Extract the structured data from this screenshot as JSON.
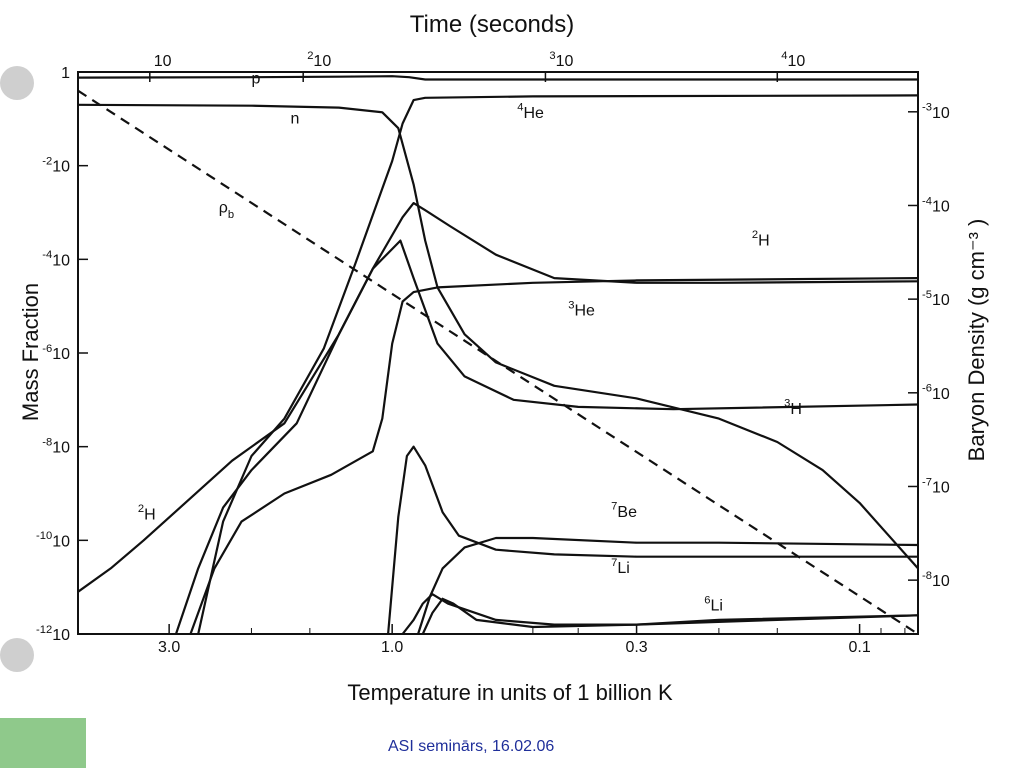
{
  "footer": "ASI seminārs, 16.02.06",
  "chart_data": {
    "type": "line",
    "title": "Time (seconds)",
    "xlabel": "Temperature  in units of 1 billion K",
    "ylabel": "Mass Fraction",
    "y2label": "Baryon Density (g cm⁻³ )",
    "x_scale": "log (decreasing)",
    "y_scale": "log",
    "xlim": [
      4.7,
      0.075
    ],
    "ylim": [
      1e-12,
      1
    ],
    "x_ticks": [
      {
        "value": 3.0,
        "label": "3.0"
      },
      {
        "value": 1.0,
        "label": "1.0"
      },
      {
        "value": 0.3,
        "label": "0.3"
      },
      {
        "value": 0.1,
        "label": "0.1"
      }
    ],
    "y_ticks": [
      {
        "exp": 0,
        "base": "1",
        "sup": ""
      },
      {
        "exp": -2,
        "base": "10",
        "sup": "-2"
      },
      {
        "exp": -4,
        "base": "10",
        "sup": "-4"
      },
      {
        "exp": -6,
        "base": "10",
        "sup": "-6"
      },
      {
        "exp": -8,
        "base": "10",
        "sup": "-8"
      },
      {
        "exp": -10,
        "base": "10",
        "sup": "-10"
      },
      {
        "exp": -12,
        "base": "10",
        "sup": "-12"
      }
    ],
    "top_ticks": [
      {
        "base": "10",
        "sup": "",
        "T": 3.3
      },
      {
        "base": "10",
        "sup": "2",
        "T": 1.55
      },
      {
        "base": "10",
        "sup": "3",
        "T": 0.47
      },
      {
        "base": "10",
        "sup": "4",
        "T": 0.15
      }
    ],
    "right_ticks": [
      {
        "base": "10",
        "sup": "-3",
        "y": -0.85
      },
      {
        "base": "10",
        "sup": "-4",
        "y": -2.85
      },
      {
        "base": "10",
        "sup": "-5",
        "y": -4.85
      },
      {
        "base": "10",
        "sup": "-6",
        "y": -6.85
      },
      {
        "base": "10",
        "sup": "-7",
        "y": -8.85
      },
      {
        "base": "10",
        "sup": "-8",
        "y": -10.85
      }
    ],
    "series": [
      {
        "name": "p",
        "label": {
          "base": "p",
          "sup": "",
          "T": 2.0,
          "y": -0.25
        },
        "points": [
          [
            4.7,
            -0.12
          ],
          [
            2.0,
            -0.11
          ],
          [
            1.3,
            -0.1
          ],
          [
            1.0,
            -0.09
          ],
          [
            0.92,
            -0.11
          ],
          [
            0.85,
            -0.16
          ],
          [
            0.5,
            -0.16
          ],
          [
            0.075,
            -0.16
          ]
        ]
      },
      {
        "name": "n",
        "label": {
          "base": "n",
          "sup": "",
          "T": 1.65,
          "y": -1.1
        },
        "points": [
          [
            4.7,
            -0.7
          ],
          [
            2.0,
            -0.72
          ],
          [
            1.3,
            -0.76
          ],
          [
            1.05,
            -0.86
          ],
          [
            0.97,
            -1.2
          ],
          [
            0.9,
            -2.4
          ],
          [
            0.85,
            -3.6
          ],
          [
            0.8,
            -4.6
          ],
          [
            0.7,
            -5.6
          ],
          [
            0.6,
            -6.2
          ],
          [
            0.45,
            -6.7
          ],
          [
            0.3,
            -6.97
          ],
          [
            0.2,
            -7.4
          ],
          [
            0.15,
            -7.9
          ],
          [
            0.12,
            -8.5
          ],
          [
            0.1,
            -9.2
          ],
          [
            0.075,
            -10.6
          ]
        ]
      },
      {
        "name": "⁴He",
        "label": {
          "base": "He",
          "sup": "4",
          "T": 0.54,
          "y": -0.98
        },
        "points": [
          [
            2.6,
            -12
          ],
          [
            2.3,
            -9.6
          ],
          [
            2.0,
            -8.2
          ],
          [
            1.7,
            -7.4
          ],
          [
            1.4,
            -5.9
          ],
          [
            1.2,
            -4.1
          ],
          [
            1.0,
            -1.9
          ],
          [
            0.95,
            -1.1
          ],
          [
            0.9,
            -0.6
          ],
          [
            0.85,
            -0.55
          ],
          [
            0.5,
            -0.52
          ],
          [
            0.075,
            -0.5
          ]
        ]
      },
      {
        "name": "²H",
        "label": {
          "base": "H",
          "sup": "2",
          "T": 3.5,
          "y": -9.55
        },
        "points": [
          [
            4.7,
            -11.1
          ],
          [
            4.0,
            -10.6
          ],
          [
            3.4,
            -10.0
          ],
          [
            2.7,
            -9.1
          ],
          [
            2.2,
            -8.3
          ],
          [
            1.7,
            -7.5
          ],
          [
            1.3,
            -5.6
          ],
          [
            1.1,
            -4.2
          ],
          [
            0.95,
            -3.1
          ],
          [
            0.9,
            -2.8
          ],
          [
            0.85,
            -2.95
          ],
          [
            0.75,
            -3.3
          ],
          [
            0.6,
            -3.9
          ],
          [
            0.45,
            -4.4
          ],
          [
            0.3,
            -4.5
          ],
          [
            0.2,
            -4.5
          ],
          [
            0.075,
            -4.47
          ]
        ]
      },
      {
        "name": "²H (late)",
        "label": {
          "base": "H",
          "sup": "2",
          "T": 0.17,
          "y": -3.7
        },
        "points": []
      },
      {
        "name": "³H",
        "label": {
          "base": "H",
          "sup": "3",
          "T": 0.145,
          "y": -7.3
        },
        "points": [
          [
            2.9,
            -12
          ],
          [
            2.6,
            -10.6
          ],
          [
            2.3,
            -9.3
          ],
          [
            2.0,
            -8.5
          ],
          [
            1.6,
            -7.5
          ],
          [
            1.3,
            -5.6
          ],
          [
            1.1,
            -4.2
          ],
          [
            0.96,
            -3.6
          ],
          [
            0.9,
            -4.4
          ],
          [
            0.8,
            -5.8
          ],
          [
            0.7,
            -6.5
          ],
          [
            0.55,
            -7.0
          ],
          [
            0.4,
            -7.15
          ],
          [
            0.25,
            -7.2
          ],
          [
            0.075,
            -7.1
          ]
        ]
      },
      {
        "name": "³He",
        "label": {
          "base": "He",
          "sup": "3",
          "T": 0.42,
          "y": -5.2
        },
        "points": [
          [
            2.7,
            -12
          ],
          [
            2.4,
            -10.6
          ],
          [
            2.1,
            -9.6
          ],
          [
            1.7,
            -9.0
          ],
          [
            1.35,
            -8.6
          ],
          [
            1.1,
            -8.1
          ],
          [
            1.05,
            -7.4
          ],
          [
            1.0,
            -5.8
          ],
          [
            0.95,
            -4.9
          ],
          [
            0.9,
            -4.7
          ],
          [
            0.8,
            -4.6
          ],
          [
            0.5,
            -4.5
          ],
          [
            0.3,
            -4.45
          ],
          [
            0.075,
            -4.4
          ]
        ]
      },
      {
        "name": "⁷Be",
        "label": {
          "base": "Be",
          "sup": "7",
          "T": 0.34,
          "y": -9.5
        },
        "points": [
          [
            1.02,
            -12
          ],
          [
            0.97,
            -9.5
          ],
          [
            0.93,
            -8.2
          ],
          [
            0.9,
            -8.0
          ],
          [
            0.85,
            -8.4
          ],
          [
            0.78,
            -9.4
          ],
          [
            0.72,
            -9.9
          ],
          [
            0.6,
            -10.2
          ],
          [
            0.45,
            -10.3
          ],
          [
            0.3,
            -10.35
          ],
          [
            0.075,
            -10.35
          ]
        ]
      },
      {
        "name": "⁷Li",
        "label": {
          "base": "Li",
          "sup": "7",
          "T": 0.34,
          "y": -10.7
        },
        "points": [
          [
            0.88,
            -12
          ],
          [
            0.83,
            -11.2
          ],
          [
            0.78,
            -10.6
          ],
          [
            0.7,
            -10.15
          ],
          [
            0.6,
            -9.95
          ],
          [
            0.5,
            -9.95
          ],
          [
            0.3,
            -10.05
          ],
          [
            0.2,
            -10.05
          ],
          [
            0.075,
            -10.1
          ]
        ]
      },
      {
        "name": "⁷Li (low)",
        "label": {
          "base": "",
          "sup": "",
          "T": 0.5,
          "y": -11.5
        },
        "points": [
          [
            0.95,
            -12
          ],
          [
            0.9,
            -11.7
          ],
          [
            0.86,
            -11.35
          ],
          [
            0.82,
            -11.15
          ],
          [
            0.76,
            -11.35
          ],
          [
            0.6,
            -11.7
          ],
          [
            0.45,
            -11.8
          ],
          [
            0.3,
            -11.8
          ],
          [
            0.15,
            -11.7
          ],
          [
            0.075,
            -11.6
          ]
        ]
      },
      {
        "name": "⁶Li",
        "label": {
          "base": "Li",
          "sup": "6",
          "T": 0.215,
          "y": -11.5
        },
        "points": []
      },
      {
        "name": "ρb",
        "dashed": true,
        "label": {
          "base": "ρ",
          "sup": "",
          "sub": "b",
          "T": 2.35,
          "y": -3.0
        },
        "points": [
          [
            4.7,
            -0.4
          ],
          [
            0.075,
            -12
          ]
        ]
      }
    ]
  }
}
